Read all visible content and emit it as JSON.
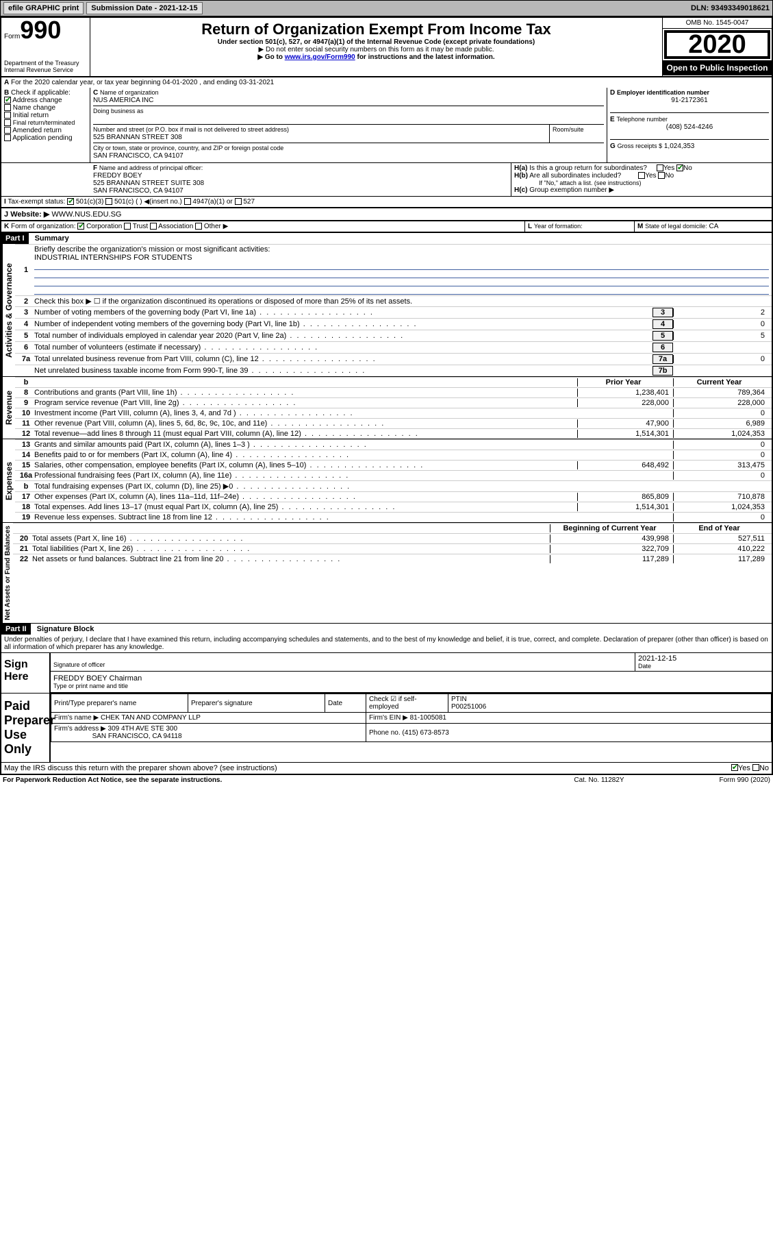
{
  "topbar": {
    "efile": "efile GRAPHIC print",
    "submission": "Submission Date - 2021-12-15",
    "dln": "DLN: 93493349018621"
  },
  "header": {
    "form_label": "Form",
    "form_num": "990",
    "dept": "Department of the Treasury\nInternal Revenue Service",
    "title": "Return of Organization Exempt From Income Tax",
    "subtitle": "Under section 501(c), 527, or 4947(a)(1) of the Internal Revenue Code (except private foundations)",
    "note1": "▶ Do not enter social security numbers on this form as it may be made public.",
    "note2_pre": "▶ Go to ",
    "note2_link": "www.irs.gov/Form990",
    "note2_post": " for instructions and the latest information.",
    "omb": "OMB No. 1545-0047",
    "year": "2020",
    "open": "Open to Public Inspection"
  },
  "line_a": "For the 2020 calendar year, or tax year beginning 04-01-2020   , and ending 03-31-2021",
  "sec_b": {
    "label": "Check if applicable:",
    "items": [
      "Address change",
      "Name change",
      "Initial return",
      "Final return/terminated",
      "Amended return",
      "Application pending"
    ],
    "checked_idx": 0
  },
  "sec_c": {
    "label": "Name of organization",
    "name": "NUS AMERICA INC",
    "dba_label": "Doing business as",
    "addr_label": "Number and street (or P.O. box if mail is not delivered to street address)",
    "room_label": "Room/suite",
    "addr": "525 BRANNAN STREET 308",
    "city_label": "City or town, state or province, country, and ZIP or foreign postal code",
    "city": "SAN FRANCISCO, CA  94107"
  },
  "sec_d": {
    "label": "Employer identification number",
    "val": "91-2172361"
  },
  "sec_e": {
    "label": "Telephone number",
    "val": "(408) 524-4246"
  },
  "sec_g": {
    "label": "Gross receipts $",
    "val": "1,024,353"
  },
  "sec_f": {
    "label": "Name and address of principal officer:",
    "name": "FREDDY BOEY",
    "addr1": "525 BRANNAN STREET SUITE 308",
    "addr2": "SAN FRANCISCO, CA  94107"
  },
  "sec_h": {
    "ha": "Is this a group return for subordinates?",
    "hb": "Are all subordinates included?",
    "hb_note": "If \"No,\" attach a list. (see instructions)",
    "hc": "Group exemption number ▶"
  },
  "tax_exempt": {
    "label": "Tax-exempt status:",
    "opts": [
      "501(c)(3)",
      "501(c) (  ) ◀(insert no.)",
      "4947(a)(1) or",
      "527"
    ]
  },
  "website": {
    "label": "Website: ▶",
    "val": "WWW.NUS.EDU.SG"
  },
  "sec_k": {
    "label": "Form of organization:",
    "opts": [
      "Corporation",
      "Trust",
      "Association",
      "Other ▶"
    ]
  },
  "sec_l": {
    "label": "Year of formation:"
  },
  "sec_m": {
    "label": "State of legal domicile:",
    "val": "CA"
  },
  "part1": {
    "header": "Part I",
    "title": "Summary",
    "q1": "Briefly describe the organization's mission or most significant activities:",
    "q1_val": "INDUSTRIAL INTERNSHIPS FOR STUDENTS",
    "q2": "Check this box ▶ ☐  if the organization discontinued its operations or disposed of more than 25% of its net assets.",
    "rows": [
      {
        "n": "3",
        "t": "Number of voting members of the governing body (Part VI, line 1a)",
        "box": "3",
        "v": "2"
      },
      {
        "n": "4",
        "t": "Number of independent voting members of the governing body (Part VI, line 1b)",
        "box": "4",
        "v": "0"
      },
      {
        "n": "5",
        "t": "Total number of individuals employed in calendar year 2020 (Part V, line 2a)",
        "box": "5",
        "v": "5"
      },
      {
        "n": "6",
        "t": "Total number of volunteers (estimate if necessary)",
        "box": "6",
        "v": ""
      },
      {
        "n": "7a",
        "t": "Total unrelated business revenue from Part VIII, column (C), line 12",
        "box": "7a",
        "v": "0"
      },
      {
        "n": "",
        "t": "Net unrelated business taxable income from Form 990-T, line 39",
        "box": "7b",
        "v": ""
      }
    ],
    "year_hdr": {
      "b": "b",
      "prior": "Prior Year",
      "current": "Current Year"
    },
    "revenue": [
      {
        "n": "8",
        "t": "Contributions and grants (Part VIII, line 1h)",
        "p": "1,238,401",
        "c": "789,364"
      },
      {
        "n": "9",
        "t": "Program service revenue (Part VIII, line 2g)",
        "p": "228,000",
        "c": "228,000"
      },
      {
        "n": "10",
        "t": "Investment income (Part VIII, column (A), lines 3, 4, and 7d )",
        "p": "",
        "c": "0"
      },
      {
        "n": "11",
        "t": "Other revenue (Part VIII, column (A), lines 5, 6d, 8c, 9c, 10c, and 11e)",
        "p": "47,900",
        "c": "6,989"
      },
      {
        "n": "12",
        "t": "Total revenue—add lines 8 through 11 (must equal Part VIII, column (A), line 12)",
        "p": "1,514,301",
        "c": "1,024,353"
      }
    ],
    "expenses": [
      {
        "n": "13",
        "t": "Grants and similar amounts paid (Part IX, column (A), lines 1–3 )",
        "p": "",
        "c": "0"
      },
      {
        "n": "14",
        "t": "Benefits paid to or for members (Part IX, column (A), line 4)",
        "p": "",
        "c": "0"
      },
      {
        "n": "15",
        "t": "Salaries, other compensation, employee benefits (Part IX, column (A), lines 5–10)",
        "p": "648,492",
        "c": "313,475"
      },
      {
        "n": "16a",
        "t": "Professional fundraising fees (Part IX, column (A), line 11e)",
        "p": "",
        "c": "0"
      },
      {
        "n": "b",
        "t": "Total fundraising expenses (Part IX, column (D), line 25) ▶0",
        "p": "_shaded_",
        "c": "_shaded_"
      },
      {
        "n": "17",
        "t": "Other expenses (Part IX, column (A), lines 11a–11d, 11f–24e)",
        "p": "865,809",
        "c": "710,878"
      },
      {
        "n": "18",
        "t": "Total expenses. Add lines 13–17 (must equal Part IX, column (A), line 25)",
        "p": "1,514,301",
        "c": "1,024,353"
      },
      {
        "n": "19",
        "t": "Revenue less expenses. Subtract line 18 from line 12",
        "p": "",
        "c": "0"
      }
    ],
    "balance_hdr": {
      "b": "Beginning of Current Year",
      "e": "End of Year"
    },
    "balances": [
      {
        "n": "20",
        "t": "Total assets (Part X, line 16)",
        "p": "439,998",
        "c": "527,511"
      },
      {
        "n": "21",
        "t": "Total liabilities (Part X, line 26)",
        "p": "322,709",
        "c": "410,222"
      },
      {
        "n": "22",
        "t": "Net assets or fund balances. Subtract line 21 from line 20",
        "p": "117,289",
        "c": "117,289"
      }
    ]
  },
  "part2": {
    "header": "Part II",
    "title": "Signature Block",
    "declaration": "Under penalties of perjury, I declare that I have examined this return, including accompanying schedules and statements, and to the best of my knowledge and belief, it is true, correct, and complete. Declaration of preparer (other than officer) is based on all information of which preparer has any knowledge.",
    "sign_here": "Sign Here",
    "sig_officer": "Signature of officer",
    "sig_date": "2021-12-15",
    "date_label": "Date",
    "officer_name": "FREDDY BOEY Chairman",
    "type_name": "Type or print name and title",
    "paid": "Paid Preparer Use Only",
    "prep_name_label": "Print/Type preparer's name",
    "prep_sig_label": "Preparer's signature",
    "check_self": "Check ☑ if self-employed",
    "ptin_label": "PTIN",
    "ptin": "P00251006",
    "firm_name_label": "Firm's name   ▶",
    "firm_name": "CHEK TAN AND COMPANY LLP",
    "firm_ein_label": "Firm's EIN ▶",
    "firm_ein": "81-1005081",
    "firm_addr_label": "Firm's address ▶",
    "firm_addr1": "309 4TH AVE STE 300",
    "firm_addr2": "SAN FRANCISCO, CA  94118",
    "phone_label": "Phone no.",
    "phone": "(415) 673-8573",
    "discuss": "May the IRS discuss this return with the preparer shown above? (see instructions)",
    "paperwork": "For Paperwork Reduction Act Notice, see the separate instructions.",
    "cat": "Cat. No. 11282Y",
    "form_foot": "Form 990 (2020)"
  },
  "labels": {
    "yes": "Yes",
    "no": "No",
    "b_prefix": "B",
    "c_prefix": "C",
    "d_prefix": "D",
    "e_prefix": "E",
    "f_prefix": "F",
    "g_prefix": "G",
    "h_a": "H(a)",
    "h_b": "H(b)",
    "h_c": "H(c)",
    "i_prefix": "I",
    "j_prefix": "J",
    "k_prefix": "K",
    "l_prefix": "L",
    "m_prefix": "M",
    "a_prefix": "A",
    "activities": "Activities & Governance",
    "revenue": "Revenue",
    "expenses_lbl": "Expenses",
    "netassets": "Net Assets or Fund Balances"
  }
}
